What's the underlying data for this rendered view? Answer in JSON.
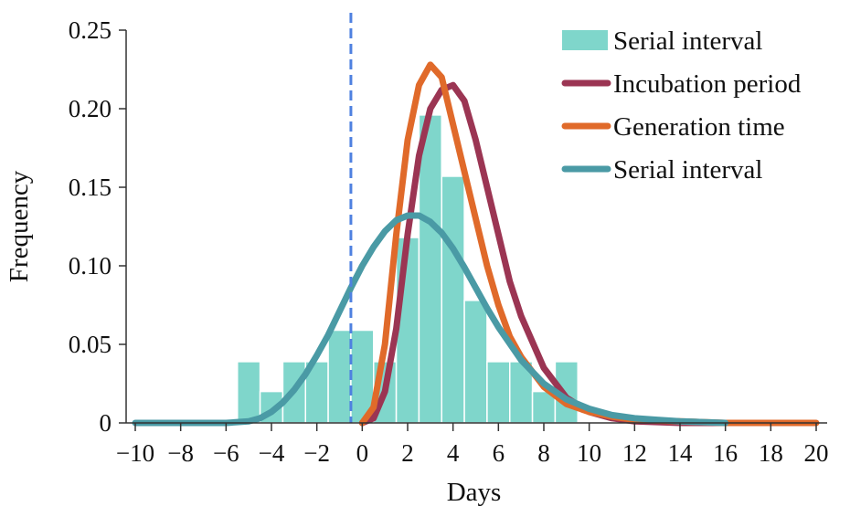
{
  "chart_data": {
    "type": "bar",
    "xlabel": "Days",
    "ylabel": "Frequency",
    "xlim": [
      -10,
      20
    ],
    "ylim": [
      0,
      0.25
    ],
    "x_ticks": [
      -10,
      -8,
      -6,
      -4,
      -2,
      0,
      2,
      4,
      6,
      8,
      10,
      12,
      14,
      16,
      18,
      20
    ],
    "x_tick_labels": [
      "−10",
      "−8",
      "−6",
      "−4",
      "−2",
      "0",
      "2",
      "4",
      "6",
      "8",
      "10",
      "12",
      "14",
      "16",
      "18",
      "20"
    ],
    "y_ticks": [
      0,
      0.05,
      0.1,
      0.15,
      0.2,
      0.25
    ],
    "y_tick_labels": [
      "0",
      "0.05",
      "0.10",
      "0.15",
      "0.20",
      "0.25"
    ],
    "grid": false,
    "legend_position": "top-right",
    "reference_line": {
      "x": -0.5,
      "style": "dashed",
      "color": "#4f81e0"
    },
    "histogram": {
      "name": "Serial interval",
      "color": "#7fd6cb",
      "bin_width": 1,
      "bins": [
        {
          "start": -5.5,
          "value": 0.039
        },
        {
          "start": -4.5,
          "value": 0.02
        },
        {
          "start": -3.5,
          "value": 0.039
        },
        {
          "start": -2.5,
          "value": 0.039
        },
        {
          "start": -1.5,
          "value": 0.059
        },
        {
          "start": -0.5,
          "value": 0.059
        },
        {
          "start": 0.5,
          "value": 0.039
        },
        {
          "start": 1.5,
          "value": 0.118
        },
        {
          "start": 2.5,
          "value": 0.196
        },
        {
          "start": 3.5,
          "value": 0.157
        },
        {
          "start": 4.5,
          "value": 0.078
        },
        {
          "start": 5.5,
          "value": 0.039
        },
        {
          "start": 6.5,
          "value": 0.039
        },
        {
          "start": 7.5,
          "value": 0.02
        },
        {
          "start": 8.5,
          "value": 0.039
        }
      ]
    },
    "series": [
      {
        "name": "Incubation period",
        "color": "#9b3553",
        "x": [
          0,
          0.5,
          1,
          1.5,
          2,
          2.5,
          3,
          3.5,
          4,
          4.5,
          5,
          5.5,
          6,
          6.5,
          7,
          8,
          9,
          10,
          11,
          12,
          14,
          16
        ],
        "y": [
          0,
          0.003,
          0.02,
          0.06,
          0.12,
          0.17,
          0.2,
          0.212,
          0.215,
          0.205,
          0.18,
          0.15,
          0.12,
          0.09,
          0.068,
          0.035,
          0.016,
          0.007,
          0.003,
          0.001,
          0.0,
          0.0
        ]
      },
      {
        "name": "Generation time",
        "color": "#e06a2a",
        "x": [
          0,
          0.5,
          1,
          1.5,
          2,
          2.5,
          3,
          3.5,
          4,
          4.5,
          5,
          5.5,
          6,
          6.5,
          7,
          8,
          9,
          10,
          11,
          12,
          14,
          16,
          18,
          20
        ],
        "y": [
          0,
          0.01,
          0.05,
          0.12,
          0.18,
          0.215,
          0.228,
          0.22,
          0.19,
          0.16,
          0.13,
          0.1,
          0.075,
          0.055,
          0.042,
          0.023,
          0.012,
          0.007,
          0.004,
          0.002,
          0.001,
          0.0,
          0.0,
          0.0
        ]
      },
      {
        "name": "Serial interval",
        "color": "#4a9aa5",
        "x": [
          -10,
          -8,
          -7,
          -6,
          -5,
          -4.5,
          -4,
          -3.5,
          -3,
          -2.5,
          -2,
          -1.5,
          -1,
          -0.5,
          0,
          0.5,
          1,
          1.5,
          2,
          2.5,
          3,
          3.5,
          4,
          4.5,
          5,
          5.5,
          6,
          7,
          8,
          9,
          10,
          11,
          12,
          13,
          14,
          16
        ],
        "y": [
          0,
          0,
          0,
          0,
          0.001,
          0.003,
          0.007,
          0.013,
          0.021,
          0.031,
          0.043,
          0.056,
          0.071,
          0.086,
          0.1,
          0.112,
          0.122,
          0.129,
          0.132,
          0.132,
          0.128,
          0.121,
          0.111,
          0.099,
          0.086,
          0.073,
          0.061,
          0.04,
          0.025,
          0.015,
          0.009,
          0.005,
          0.003,
          0.002,
          0.001,
          0.0
        ]
      }
    ],
    "legend": [
      {
        "label": "Serial interval",
        "kind": "box",
        "color": "#7fd6cb"
      },
      {
        "label": "Incubation period",
        "kind": "line",
        "color": "#9b3553"
      },
      {
        "label": "Generation time",
        "kind": "line",
        "color": "#e06a2a"
      },
      {
        "label": "Serial interval",
        "kind": "line",
        "color": "#4a9aa5"
      }
    ]
  }
}
